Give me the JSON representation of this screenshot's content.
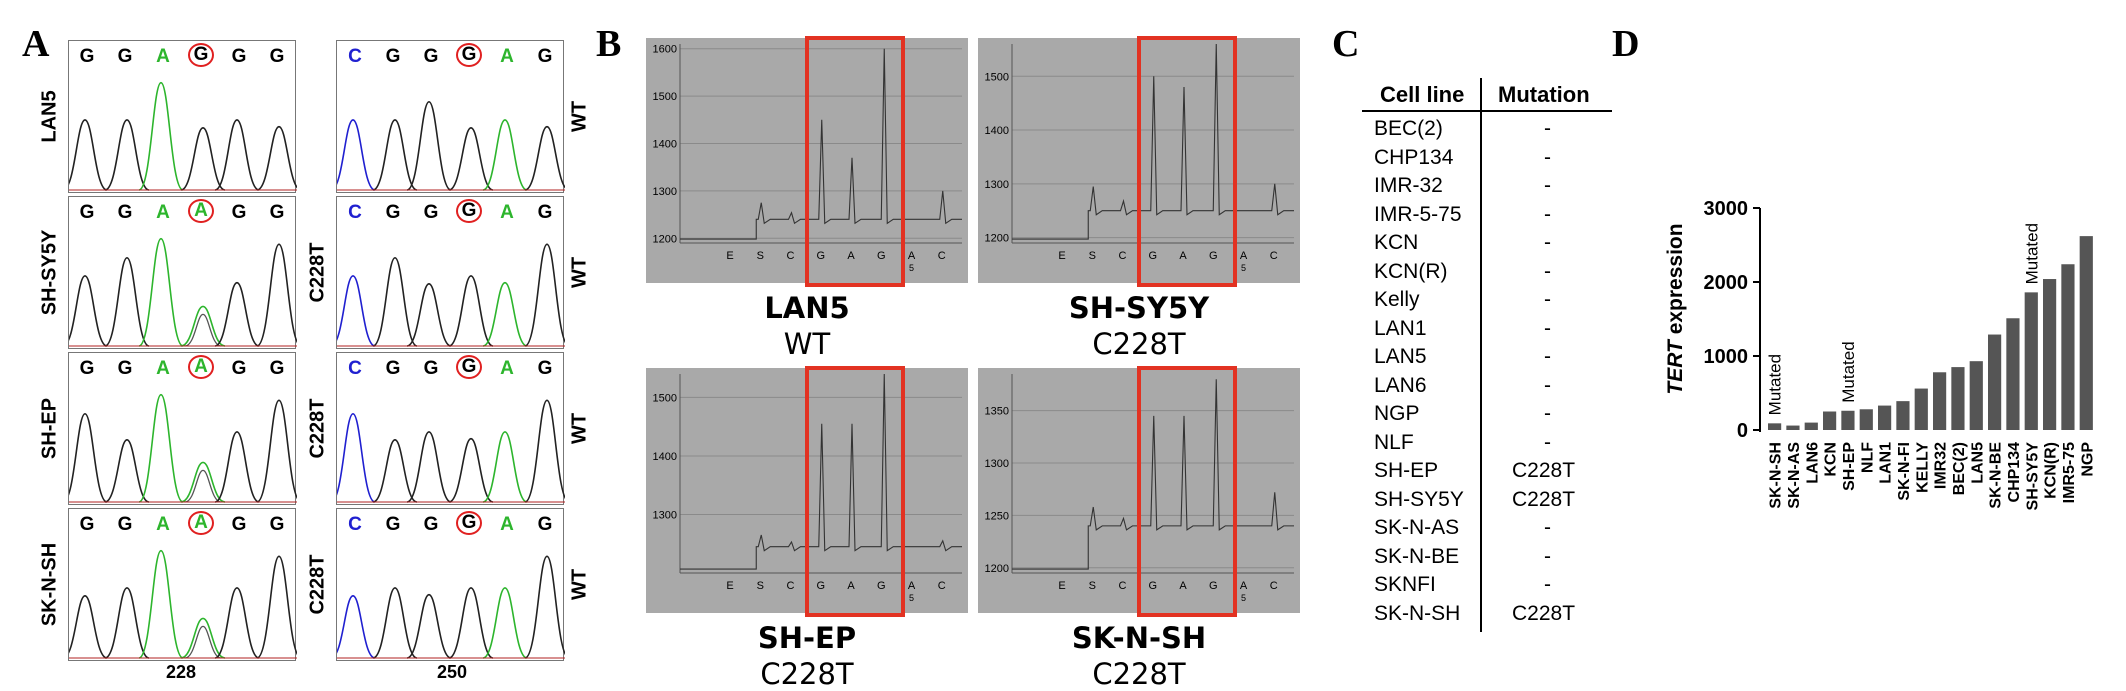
{
  "panels": {
    "a": "A",
    "b": "B",
    "c": "C",
    "d": "D"
  },
  "panelA": {
    "rows": [
      {
        "label": "LAN5",
        "right_label": "WT",
        "left_bases": [
          {
            "b": "G",
            "c": "#000"
          },
          {
            "b": "G",
            "c": "#000"
          },
          {
            "b": "A",
            "c": "#2db52d"
          },
          {
            "b": "G",
            "c": "#000",
            "circ": true
          },
          {
            "b": "G",
            "c": "#000"
          },
          {
            "b": "G",
            "c": "#000"
          }
        ],
        "right_bases": [
          {
            "b": "C",
            "c": "#2020d0"
          },
          {
            "b": "G",
            "c": "#000"
          },
          {
            "b": "G",
            "c": "#000"
          },
          {
            "b": "G",
            "c": "#000",
            "circ": true
          },
          {
            "b": "A",
            "c": "#2db52d"
          },
          {
            "b": "G",
            "c": "#000"
          }
        ]
      },
      {
        "label": "SH-SY5Y",
        "mid_label": "C228T",
        "right_label": "WT",
        "left_bases": [
          {
            "b": "G",
            "c": "#000"
          },
          {
            "b": "G",
            "c": "#000"
          },
          {
            "b": "A",
            "c": "#2db52d"
          },
          {
            "b": "A",
            "c": "#2db52d",
            "circ": true
          },
          {
            "b": "G",
            "c": "#000"
          },
          {
            "b": "G",
            "c": "#000"
          }
        ],
        "right_bases": [
          {
            "b": "C",
            "c": "#2020d0"
          },
          {
            "b": "G",
            "c": "#000"
          },
          {
            "b": "G",
            "c": "#000"
          },
          {
            "b": "G",
            "c": "#000",
            "circ": true
          },
          {
            "b": "A",
            "c": "#2db52d"
          },
          {
            "b": "G",
            "c": "#000"
          }
        ]
      },
      {
        "label": "SH-EP",
        "mid_label": "C228T",
        "right_label": "WT",
        "left_bases": [
          {
            "b": "G",
            "c": "#000"
          },
          {
            "b": "G",
            "c": "#000"
          },
          {
            "b": "A",
            "c": "#2db52d"
          },
          {
            "b": "A",
            "c": "#2db52d",
            "circ": true
          },
          {
            "b": "G",
            "c": "#000"
          },
          {
            "b": "G",
            "c": "#000"
          }
        ],
        "right_bases": [
          {
            "b": "C",
            "c": "#2020d0"
          },
          {
            "b": "G",
            "c": "#000"
          },
          {
            "b": "G",
            "c": "#000"
          },
          {
            "b": "G",
            "c": "#000",
            "circ": true
          },
          {
            "b": "A",
            "c": "#2db52d"
          },
          {
            "b": "G",
            "c": "#000"
          }
        ]
      },
      {
        "label": "SK-N-SH",
        "mid_label": "C228T",
        "right_label": "WT",
        "left_bases": [
          {
            "b": "G",
            "c": "#000"
          },
          {
            "b": "G",
            "c": "#000"
          },
          {
            "b": "A",
            "c": "#2db52d"
          },
          {
            "b": "A",
            "c": "#2db52d",
            "circ": true
          },
          {
            "b": "G",
            "c": "#000"
          },
          {
            "b": "G",
            "c": "#000"
          }
        ],
        "right_bases": [
          {
            "b": "C",
            "c": "#2020d0"
          },
          {
            "b": "G",
            "c": "#000"
          },
          {
            "b": "G",
            "c": "#000"
          },
          {
            "b": "G",
            "c": "#000",
            "circ": true
          },
          {
            "b": "A",
            "c": "#2db52d"
          },
          {
            "b": "G",
            "c": "#000"
          }
        ]
      }
    ],
    "pos_left": "228",
    "pos_right": "250"
  },
  "panelB": {
    "x_labels": [
      "E",
      "S",
      "C",
      "G",
      "A",
      "G",
      "A",
      "C"
    ],
    "x_sub": "5",
    "plots": [
      {
        "name": "LAN5",
        "mutation": "WT",
        "yticks": [
          "1600",
          "1500",
          "1400",
          "1300",
          "1200"
        ],
        "ymin": 1190,
        "ymax": 1610,
        "baseline": 1240,
        "peaks": [
          1450,
          1370,
          1600
        ],
        "s_peak": 1275,
        "c_tail": 1300
      },
      {
        "name": "SH-SY5Y",
        "mutation": "C228T",
        "yticks": [
          "1500",
          "1400",
          "1300",
          "1200"
        ],
        "ymin": 1190,
        "ymax": 1560,
        "baseline": 1250,
        "peaks": [
          1500,
          1480,
          1560
        ],
        "s_peak": 1295,
        "c_tail": 1300
      },
      {
        "name": "SH-EP",
        "mutation": "C228T",
        "yticks": [
          "1500",
          "1400",
          "1300"
        ],
        "ymin": 1200,
        "ymax": 1540,
        "baseline": 1245,
        "peaks": [
          1455,
          1455,
          1540
        ],
        "s_peak": 1265,
        "c_tail": 1255
      },
      {
        "name": "SK-N-SH",
        "mutation": "C228T",
        "yticks": [
          "1350",
          "1300",
          "1250",
          "1200"
        ],
        "ymin": 1195,
        "ymax": 1385,
        "baseline": 1240,
        "peaks": [
          1345,
          1345,
          1380
        ],
        "s_peak": 1258,
        "c_tail": 1272
      }
    ]
  },
  "panelC": {
    "headers": [
      "Cell line",
      "Mutation"
    ],
    "rows": [
      [
        "BEC(2)",
        "-"
      ],
      [
        "CHP134",
        "-"
      ],
      [
        "IMR-32",
        "-"
      ],
      [
        "IMR-5-75",
        "-"
      ],
      [
        "KCN",
        "-"
      ],
      [
        "KCN(R)",
        "-"
      ],
      [
        "Kelly",
        "-"
      ],
      [
        "LAN1",
        "-"
      ],
      [
        "LAN5",
        "-"
      ],
      [
        "LAN6",
        "-"
      ],
      [
        "NGP",
        "-"
      ],
      [
        "NLF",
        "-"
      ],
      [
        "SH-EP",
        "C228T"
      ],
      [
        "SH-SY5Y",
        "C228T"
      ],
      [
        "SK-N-AS",
        "-"
      ],
      [
        "SK-N-BE",
        "-"
      ],
      [
        "SKNFI",
        "-"
      ],
      [
        "SK-N-SH",
        "C228T"
      ]
    ]
  },
  "chart_data": {
    "type": "bar",
    "ylabel_italic": "TERT",
    "ylabel": " expression",
    "ylim": [
      0,
      3000
    ],
    "yticks": [
      0,
      1000,
      2000,
      3000
    ],
    "categories": [
      "SK-N-SH",
      "SK-N-AS",
      "LAN6",
      "KCN",
      "SH-EP",
      "NLF",
      "LAN1",
      "SK-N-FI",
      "KELLY",
      "IMR32",
      "BEC(2)",
      "LAN5",
      "SK-N-BE",
      "CHP134",
      "SH-SY5Y",
      "KCN(R)",
      "IMR5-75",
      "NGP"
    ],
    "values": [
      90,
      60,
      100,
      250,
      260,
      280,
      330,
      390,
      560,
      780,
      850,
      930,
      1290,
      1510,
      1860,
      2040,
      2240,
      2620
    ],
    "annotations": [
      {
        "category": "SK-N-SH",
        "text": "Mutated"
      },
      {
        "category": "SH-EP",
        "text": "Mutated"
      },
      {
        "category": "SH-SY5Y",
        "text": "Mutated"
      }
    ],
    "bar_color": "#555555"
  }
}
